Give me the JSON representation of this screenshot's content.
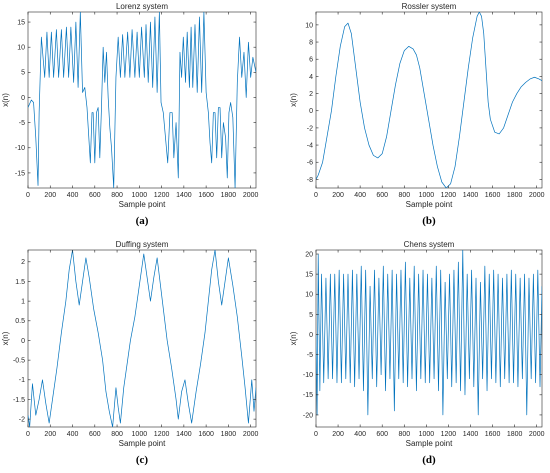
{
  "figure": {
    "line_color": "#0072bd",
    "panel_labels": [
      "(a)",
      "(b)",
      "(c)",
      "(d)"
    ]
  },
  "chart_data": [
    {
      "type": "line",
      "title": "Lorenz system",
      "xlabel": "Sample point",
      "ylabel": "x(n)",
      "xlim": [
        0,
        2048
      ],
      "ylim": [
        -18,
        17
      ],
      "xticks": [
        0,
        200,
        400,
        600,
        800,
        1000,
        1200,
        1400,
        1600,
        1800,
        2000
      ],
      "yticks": [
        -15,
        -10,
        -5,
        0,
        5,
        10,
        15
      ],
      "grid": false,
      "series": [
        {
          "x": [
            0,
            30,
            50,
            70,
            90,
            100,
            120,
            150,
            170,
            190,
            210,
            230,
            255,
            275,
            300,
            320,
            345,
            365,
            385,
            410,
            430,
            450,
            470,
            490,
            510,
            530,
            560,
            575,
            585,
            600,
            615,
            630,
            645,
            660,
            675,
            690,
            705,
            720,
            735,
            750,
            770,
            790,
            810,
            830,
            850,
            870,
            895,
            915,
            935,
            960,
            980,
            1000,
            1020,
            1045,
            1060,
            1080,
            1100,
            1120,
            1140,
            1160,
            1180,
            1195,
            1215,
            1235,
            1255,
            1275,
            1295,
            1310,
            1330,
            1350,
            1365,
            1380,
            1395,
            1415,
            1430,
            1450,
            1465,
            1480,
            1500,
            1520,
            1540,
            1560,
            1580,
            1600,
            1620,
            1635,
            1650,
            1665,
            1680,
            1695,
            1710,
            1725,
            1740,
            1755,
            1775,
            1790,
            1805,
            1820,
            1840,
            1860,
            1880,
            1900,
            1920,
            1940,
            1960,
            1980,
            2000,
            2020,
            2048
          ],
          "y": [
            -2,
            -0.5,
            -1,
            -8,
            -17.5,
            -3,
            12,
            4,
            13,
            4,
            13,
            4,
            13.5,
            4,
            13.5,
            4,
            14,
            4,
            14,
            3,
            15,
            2,
            17,
            1,
            2,
            -2,
            -13,
            -3,
            -3,
            -13,
            -3,
            -2,
            -12,
            -2,
            10,
            3,
            9,
            0,
            -6,
            -10,
            -18,
            4,
            12,
            4,
            12.5,
            4,
            13,
            4,
            13.5,
            4,
            13,
            4,
            14,
            4,
            14.5,
            3,
            15,
            2,
            16,
            1,
            17,
            -1,
            -3,
            -8,
            -13,
            -3,
            -3,
            -12,
            -5,
            -16,
            9,
            4,
            12,
            3,
            13,
            2,
            14,
            2,
            14.5,
            1,
            16,
            1,
            17,
            1,
            -3,
            -9,
            -13,
            -3,
            -3,
            -12,
            -2,
            -2,
            -12,
            -5,
            -8,
            -16,
            -3,
            -1,
            -4,
            -18,
            3,
            12,
            4,
            9,
            0,
            11,
            4,
            8,
            5
          ]
        }
      ]
    },
    {
      "type": "line",
      "title": "Rossler system",
      "xlabel": "Sample point",
      "ylabel": "x(n)",
      "xlim": [
        0,
        2048
      ],
      "ylim": [
        -9,
        11.5
      ],
      "xticks": [
        0,
        200,
        400,
        600,
        800,
        1000,
        1200,
        1400,
        1600,
        1800,
        2000
      ],
      "yticks": [
        -8,
        -6,
        -4,
        -2,
        0,
        2,
        4,
        6,
        8,
        10
      ],
      "grid": false,
      "series": [
        {
          "x": [
            0,
            20,
            60,
            100,
            140,
            180,
            220,
            260,
            290,
            320,
            360,
            400,
            440,
            480,
            520,
            560,
            600,
            640,
            680,
            720,
            760,
            800,
            840,
            880,
            910,
            940,
            980,
            1020,
            1060,
            1100,
            1140,
            1180,
            1220,
            1260,
            1300,
            1340,
            1380,
            1420,
            1460,
            1480,
            1500,
            1520,
            1540,
            1560,
            1580,
            1620,
            1660,
            1700,
            1740,
            1780,
            1820,
            1860,
            1900,
            1940,
            1980,
            2020,
            2048
          ],
          "y": [
            -8,
            -7.5,
            -6,
            -3,
            0,
            4,
            7.5,
            9.8,
            10.2,
            9,
            5,
            1,
            -2,
            -4,
            -5.2,
            -5.5,
            -5,
            -3,
            0,
            3,
            5.5,
            7,
            7.5,
            7.2,
            6.5,
            5,
            2,
            -1,
            -4,
            -6.5,
            -8.3,
            -9,
            -8.5,
            -6.5,
            -3,
            1,
            5,
            8.5,
            11,
            11.5,
            11,
            9,
            5,
            1,
            -1,
            -2.5,
            -2.7,
            -2,
            -0.5,
            1,
            2,
            2.8,
            3.3,
            3.7,
            3.9,
            3.7,
            3.5
          ]
        }
      ]
    },
    {
      "type": "line",
      "title": "Duffing system",
      "xlabel": "Sample point",
      "ylabel": "x(n)",
      "xlim": [
        0,
        2048
      ],
      "ylim": [
        -2.2,
        2.3
      ],
      "xticks": [
        0,
        200,
        400,
        600,
        800,
        1000,
        1200,
        1400,
        1600,
        1800,
        2000
      ],
      "yticks": [
        -2,
        -1.5,
        -1,
        -0.5,
        0,
        0.5,
        1,
        1.5,
        2
      ],
      "grid": false,
      "series": [
        {
          "x": [
            0,
            15,
            40,
            70,
            100,
            130,
            160,
            190,
            220,
            260,
            300,
            340,
            370,
            400,
            430,
            460,
            490,
            520,
            550,
            590,
            630,
            670,
            700,
            730,
            760,
            790,
            810,
            830,
            860,
            890,
            920,
            960,
            1000,
            1040,
            1070,
            1100,
            1130,
            1160,
            1190,
            1220,
            1250,
            1290,
            1330,
            1350,
            1380,
            1410,
            1440,
            1470,
            1510,
            1550,
            1590,
            1620,
            1650,
            1680,
            1710,
            1740,
            1770,
            1800,
            1840,
            1880,
            1920,
            1950,
            1980,
            2010,
            2030,
            2048
          ],
          "y": [
            -1.9,
            -2.2,
            -1.1,
            -1.9,
            -1.5,
            -1.0,
            -1.6,
            -2.1,
            -1.5,
            -0.7,
            0.2,
            1.0,
            1.8,
            2.3,
            1.5,
            0.9,
            1.5,
            2.1,
            1.6,
            0.8,
            0.2,
            -0.5,
            -1.3,
            -1.8,
            -2.2,
            -1.2,
            -1.7,
            -2.1,
            -1.2,
            -0.6,
            0.0,
            0.6,
            1.4,
            2.2,
            1.6,
            1.0,
            1.6,
            2.1,
            1.4,
            0.7,
            0.0,
            -0.7,
            -1.5,
            -2.0,
            -1.3,
            -1.0,
            -1.6,
            -2.1,
            -1.3,
            -0.6,
            0.2,
            1.0,
            1.8,
            2.3,
            1.5,
            0.9,
            1.5,
            2.1,
            1.4,
            0.6,
            -0.4,
            -1.2,
            -2.1,
            -1.0,
            -1.8,
            -1.2
          ]
        }
      ]
    },
    {
      "type": "line",
      "title": "Chens system",
      "xlabel": "Sample point",
      "ylabel": "x(n)",
      "xlim": [
        0,
        2048
      ],
      "ylim": [
        -23,
        21
      ],
      "xticks": [
        0,
        200,
        400,
        600,
        800,
        1000,
        1200,
        1400,
        1600,
        1800,
        2000
      ],
      "yticks": [
        -20,
        -15,
        -10,
        -5,
        0,
        5,
        10,
        15,
        20
      ],
      "grid": false,
      "series": [
        {
          "x": [
            0,
            10,
            20,
            35,
            50,
            70,
            90,
            110,
            130,
            150,
            170,
            190,
            210,
            230,
            250,
            270,
            290,
            310,
            330,
            350,
            370,
            390,
            410,
            430,
            450,
            470,
            490,
            510,
            530,
            550,
            570,
            590,
            610,
            630,
            650,
            670,
            690,
            710,
            730,
            750,
            770,
            790,
            810,
            830,
            850,
            870,
            890,
            910,
            930,
            950,
            970,
            990,
            1010,
            1030,
            1050,
            1070,
            1090,
            1110,
            1130,
            1150,
            1170,
            1190,
            1210,
            1230,
            1250,
            1270,
            1290,
            1310,
            1330,
            1350,
            1370,
            1390,
            1410,
            1430,
            1450,
            1470,
            1490,
            1510,
            1530,
            1550,
            1570,
            1590,
            1610,
            1630,
            1650,
            1670,
            1690,
            1710,
            1730,
            1750,
            1770,
            1790,
            1810,
            1830,
            1850,
            1870,
            1890,
            1910,
            1930,
            1950,
            1970,
            1990,
            2010,
            2030,
            2048
          ],
          "y": [
            0,
            -20,
            20,
            -14,
            15,
            -12,
            14,
            -11,
            15,
            -11,
            15,
            -12,
            16,
            -12,
            15,
            -11,
            15,
            -12,
            16,
            -13,
            15,
            -11,
            17,
            -14,
            16,
            -20,
            12,
            -11,
            16,
            -13,
            14,
            -10,
            17,
            -14,
            15,
            -11,
            16,
            -19,
            15,
            -11,
            16,
            -12,
            18,
            -13,
            14,
            -11,
            17,
            -14,
            15,
            -11,
            16,
            -12,
            15,
            -12,
            14,
            -11,
            17,
            -14,
            16,
            -20,
            13,
            -11,
            15,
            -13,
            16,
            -12,
            18,
            -14,
            21,
            -15,
            15,
            -11,
            16,
            -13,
            14,
            -20,
            13,
            -11,
            17,
            -14,
            15,
            -11,
            16,
            -12,
            15,
            -13,
            14,
            -11,
            15,
            -12,
            16,
            -12,
            15,
            -13,
            14,
            -11,
            15,
            -20,
            14,
            -11,
            15,
            -12,
            16,
            -13,
            12
          ]
        }
      ]
    }
  ]
}
